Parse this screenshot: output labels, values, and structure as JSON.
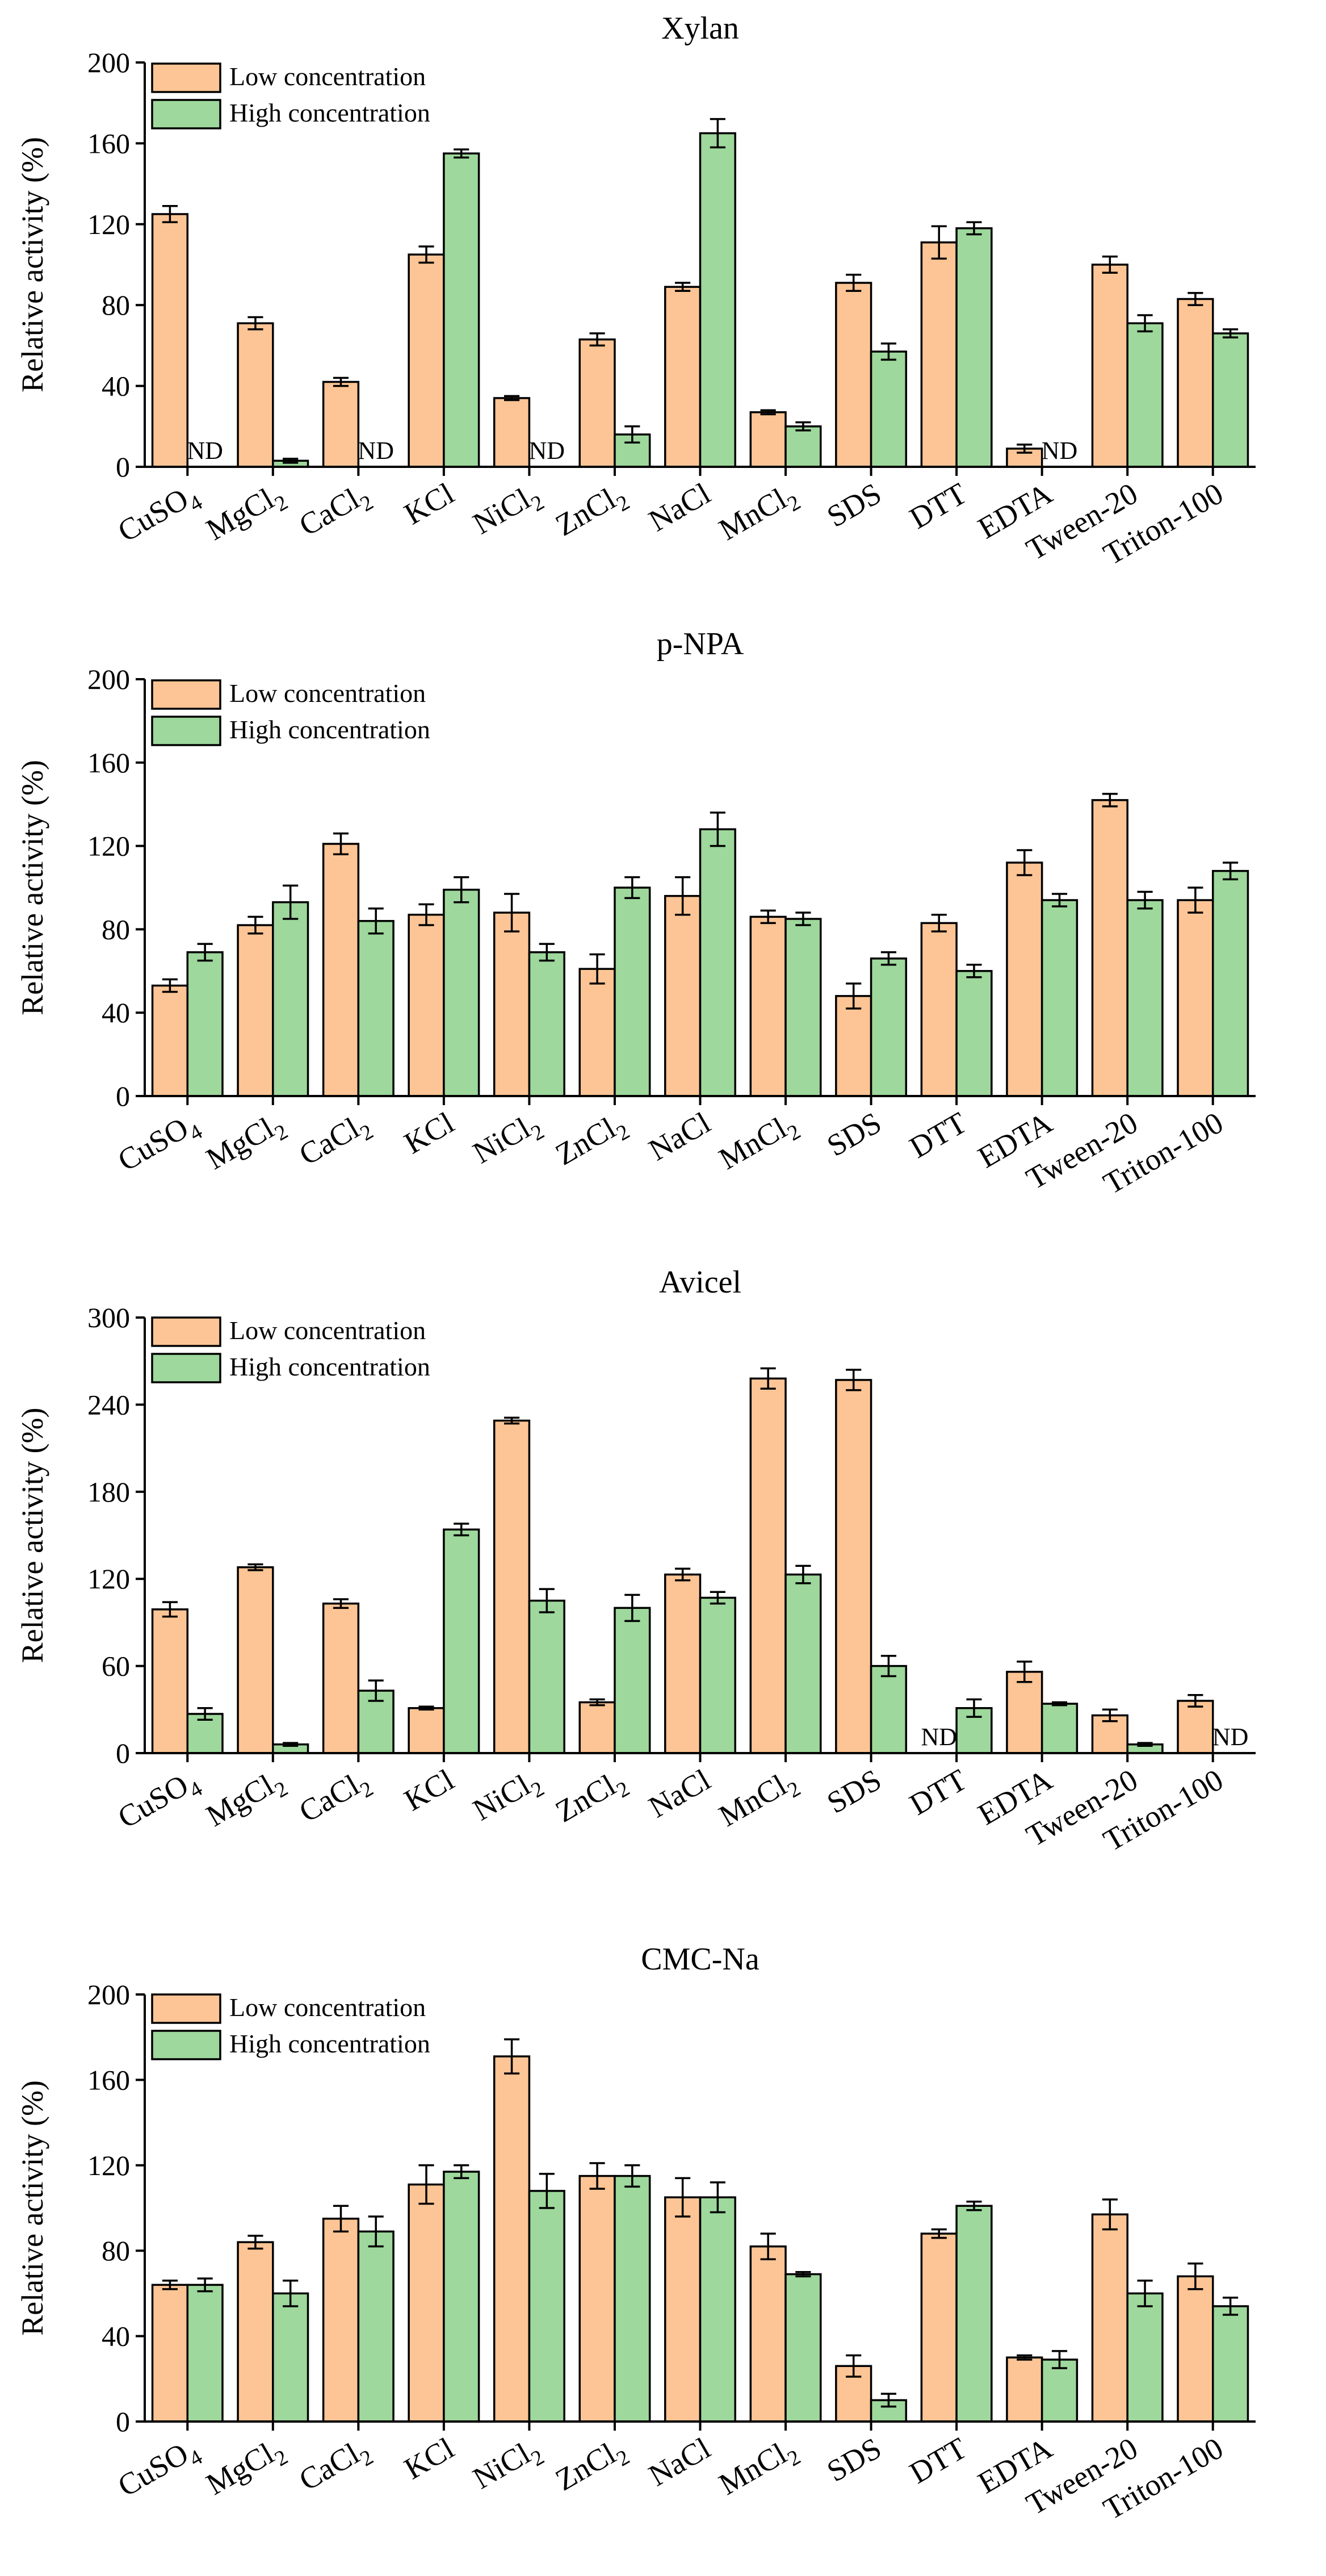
{
  "colors": {
    "low": "#FDC595",
    "high": "#9ED89C"
  },
  "legend": {
    "low": "Low concentration",
    "high": "High concentration"
  },
  "ylabel": "Relative activity (%)",
  "nd_label": "ND",
  "chart_data": [
    {
      "type": "bar",
      "title": "Xylan",
      "ylabel": "Relative activity (%)",
      "ylim": [
        0,
        200
      ],
      "yticks": [
        0,
        40,
        80,
        120,
        160,
        200
      ],
      "categories": [
        "CuSO4",
        "MgCl2",
        "CaCl2",
        "KCl",
        "NiCl2",
        "ZnCl2",
        "NaCl",
        "MnCl2",
        "SDS",
        "DTT",
        "EDTA",
        "Tween-20",
        "Triton-100"
      ],
      "series": [
        {
          "name": "Low concentration",
          "values": [
            125,
            71,
            42,
            105,
            34,
            63,
            89,
            27,
            91,
            111,
            9,
            100,
            83
          ],
          "errors": [
            4,
            3,
            2,
            4,
            1,
            3,
            2,
            1,
            4,
            8,
            2,
            4,
            3
          ]
        },
        {
          "name": "High concentration",
          "values": [
            0,
            3,
            0,
            155,
            0,
            16,
            165,
            20,
            57,
            118,
            0,
            71,
            66
          ],
          "errors": [
            0,
            1,
            0,
            2,
            0,
            4,
            7,
            2,
            4,
            3,
            0,
            4,
            2
          ],
          "nd": [
            true,
            false,
            true,
            false,
            true,
            false,
            false,
            false,
            false,
            false,
            true,
            false,
            false
          ]
        }
      ]
    },
    {
      "type": "bar",
      "title": "p-NPA",
      "ylabel": "Relative activity (%)",
      "ylim": [
        0,
        200
      ],
      "yticks": [
        0,
        40,
        80,
        120,
        160,
        200
      ],
      "categories": [
        "CuSO4",
        "MgCl2",
        "CaCl2",
        "KCl",
        "NiCl2",
        "ZnCl2",
        "NaCl",
        "MnCl2",
        "SDS",
        "DTT",
        "EDTA",
        "Tween-20",
        "Triton-100"
      ],
      "series": [
        {
          "name": "Low concentration",
          "values": [
            53,
            82,
            121,
            87,
            88,
            61,
            96,
            86,
            48,
            83,
            112,
            142,
            94
          ],
          "errors": [
            3,
            4,
            5,
            5,
            9,
            7,
            9,
            3,
            6,
            4,
            6,
            3,
            6
          ]
        },
        {
          "name": "High concentration",
          "values": [
            69,
            93,
            84,
            99,
            69,
            100,
            128,
            85,
            66,
            60,
            94,
            94,
            108
          ],
          "errors": [
            4,
            8,
            6,
            6,
            4,
            5,
            8,
            3,
            3,
            3,
            3,
            4,
            4
          ]
        }
      ]
    },
    {
      "type": "bar",
      "title": "Avicel",
      "ylabel": "Relative activity (%)",
      "ylim": [
        0,
        300
      ],
      "yticks": [
        0,
        60,
        120,
        180,
        240,
        300
      ],
      "categories": [
        "CuSO4",
        "MgCl2",
        "CaCl2",
        "KCl",
        "NiCl2",
        "ZnCl2",
        "NaCl",
        "MnCl2",
        "SDS",
        "DTT",
        "EDTA",
        "Tween-20",
        "Triton-100"
      ],
      "series": [
        {
          "name": "Low concentration",
          "values": [
            99,
            128,
            103,
            31,
            229,
            35,
            123,
            258,
            257,
            0,
            56,
            26,
            36
          ],
          "errors": [
            5,
            2,
            3,
            1,
            2,
            2,
            4,
            7,
            7,
            0,
            7,
            4,
            4
          ],
          "nd": [
            false,
            false,
            false,
            false,
            false,
            false,
            false,
            false,
            false,
            true,
            false,
            false,
            false
          ]
        },
        {
          "name": "High concentration",
          "values": [
            27,
            6,
            43,
            154,
            105,
            100,
            107,
            123,
            60,
            31,
            34,
            6,
            0
          ],
          "errors": [
            4,
            1,
            7,
            4,
            8,
            9,
            4,
            6,
            7,
            6,
            1,
            1,
            0
          ],
          "nd": [
            false,
            false,
            false,
            false,
            false,
            false,
            false,
            false,
            false,
            false,
            false,
            false,
            true
          ]
        }
      ]
    },
    {
      "type": "bar",
      "title": "CMC-Na",
      "ylabel": "Relative activity (%)",
      "ylim": [
        0,
        200
      ],
      "yticks": [
        0,
        40,
        80,
        120,
        160,
        200
      ],
      "categories": [
        "CuSO4",
        "MgCl2",
        "CaCl2",
        "KCl",
        "NiCl2",
        "ZnCl2",
        "NaCl",
        "MnCl2",
        "SDS",
        "DTT",
        "EDTA",
        "Tween-20",
        "Triton-100"
      ],
      "series": [
        {
          "name": "Low concentration",
          "values": [
            64,
            84,
            95,
            111,
            171,
            115,
            105,
            82,
            26,
            88,
            30,
            97,
            68
          ],
          "errors": [
            2,
            3,
            6,
            9,
            8,
            6,
            9,
            6,
            5,
            2,
            1,
            7,
            6
          ]
        },
        {
          "name": "High concentration",
          "values": [
            64,
            60,
            89,
            117,
            108,
            115,
            105,
            69,
            10,
            101,
            29,
            60,
            54
          ],
          "errors": [
            3,
            6,
            7,
            3,
            8,
            5,
            7,
            1,
            3,
            2,
            4,
            6,
            4
          ]
        }
      ]
    }
  ]
}
